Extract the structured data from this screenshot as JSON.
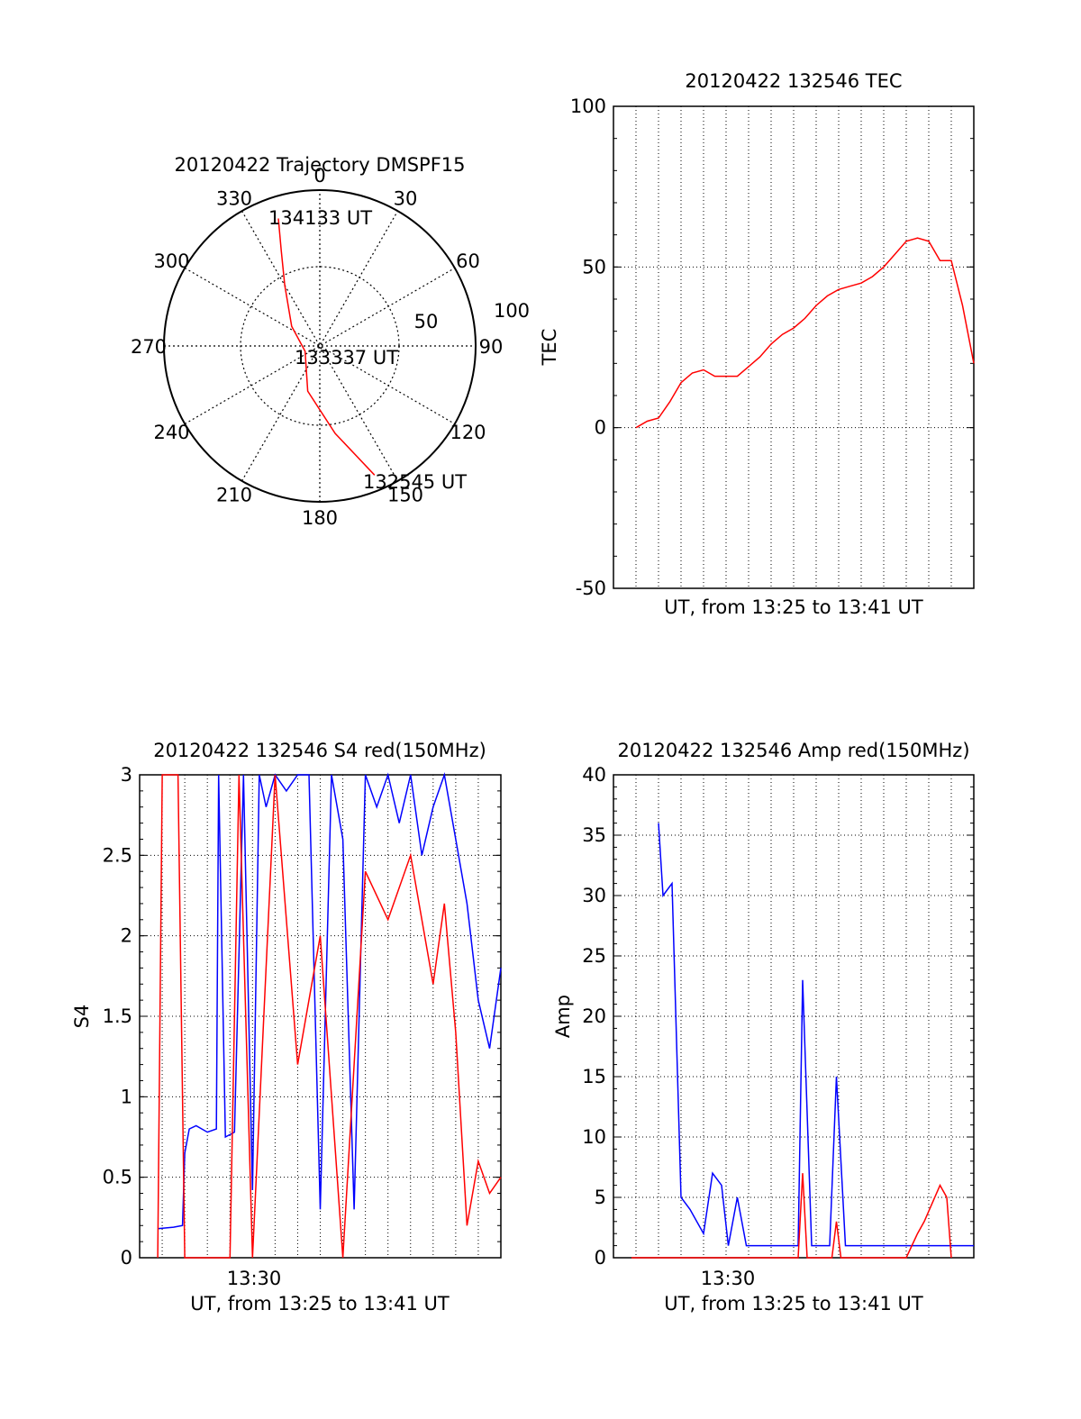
{
  "chart_data": [
    {
      "id": "trajectory",
      "type": "polar",
      "title": "20120422 Trajectory DMSPF15",
      "angle_labels": [
        "0",
        "30",
        "60",
        "90",
        "120",
        "150",
        "180",
        "210",
        "240",
        "270",
        "300",
        "330"
      ],
      "radius_labels": [
        "50",
        "100"
      ],
      "annotations": [
        "134133 UT",
        "133337 UT",
        "132545 UT"
      ],
      "series": [
        {
          "color": "#ff0000",
          "points": [
            {
              "az": 342,
              "r": 86
            },
            {
              "az": 338,
              "r": 66
            },
            {
              "az": 330,
              "r": 45
            },
            {
              "az": 305,
              "r": 22
            },
            {
              "az": 250,
              "r": 10
            },
            {
              "az": 195,
              "r": 30
            },
            {
              "az": 170,
              "r": 57
            },
            {
              "az": 157,
              "r": 90
            }
          ]
        }
      ]
    },
    {
      "id": "tec",
      "type": "line",
      "title": "20120422 132546 TEC",
      "xlabel": "UT, from 13:25 to 13:41 UT",
      "ylabel": "TEC",
      "xlim": [
        0,
        16
      ],
      "ylim": [
        -50,
        100
      ],
      "yticks": [
        "-50",
        "0",
        "50",
        "100"
      ],
      "grid": true,
      "series": [
        {
          "color": "#ff0000",
          "x": [
            1,
            1.5,
            2,
            2.5,
            3,
            3.5,
            4,
            4.5,
            5,
            5.5,
            6,
            6.5,
            7,
            7.5,
            8,
            8.5,
            9,
            9.5,
            10,
            10.5,
            11,
            11.5,
            12,
            12.5,
            13,
            13.5,
            14,
            14.5,
            15,
            15.5,
            16
          ],
          "y": [
            0,
            2,
            3,
            8,
            14,
            17,
            18,
            16,
            16,
            16,
            19,
            22,
            26,
            29,
            31,
            34,
            38,
            41,
            43,
            44,
            45,
            47,
            50,
            54,
            58,
            59,
            58,
            52,
            52,
            38,
            20
          ]
        }
      ]
    },
    {
      "id": "s4",
      "type": "line",
      "title": "20120422 132546 S4 red(150MHz)",
      "xlabel": "UT, from 13:25 to 13:41 UT",
      "ylabel": "S4",
      "xtick_labels": [
        "13:30"
      ],
      "xlim": [
        0,
        16
      ],
      "ylim": [
        0,
        3
      ],
      "yticks": [
        "0",
        "0.5",
        "1",
        "1.5",
        "2",
        "2.5",
        "3"
      ],
      "grid": true,
      "series": [
        {
          "color": "#0000ff",
          "x": [
            0.8,
            1.5,
            1.9,
            2.0,
            2.2,
            2.5,
            3.0,
            3.4,
            3.5,
            3.8,
            4.2,
            4.6,
            5.0,
            5.3,
            5.6,
            6.0,
            6.5,
            7.0,
            7.5,
            8.0,
            8.5,
            9.0,
            9.5,
            10.0,
            10.5,
            11.0,
            11.5,
            12.0,
            12.5,
            13.0,
            13.5,
            14.0,
            14.5,
            15.0,
            15.5,
            16.0
          ],
          "y": [
            0.18,
            0.19,
            0.2,
            0.65,
            0.8,
            0.82,
            0.78,
            0.8,
            3.0,
            0.75,
            0.78,
            3.0,
            0.42,
            3.0,
            2.8,
            3.0,
            2.9,
            3.0,
            3.0,
            0.3,
            3.0,
            2.6,
            0.3,
            3.0,
            2.8,
            3.0,
            2.7,
            3.0,
            2.5,
            2.8,
            3.0,
            2.6,
            2.2,
            1.6,
            1.3,
            1.8
          ]
        },
        {
          "color": "#ff0000",
          "x": [
            0.8,
            1.0,
            1.7,
            2.0,
            4.0,
            4.4,
            5.0,
            6.0,
            7.0,
            8.0,
            9.0,
            10.0,
            11.0,
            12.0,
            13.0,
            13.5,
            14.0,
            14.5,
            15.0,
            15.5,
            16.0
          ],
          "y": [
            0.0,
            3.0,
            3.0,
            0.0,
            0.0,
            3.0,
            0.0,
            3.0,
            1.2,
            2.0,
            0.0,
            2.4,
            2.1,
            2.5,
            1.7,
            2.2,
            1.4,
            0.2,
            0.6,
            0.4,
            0.5
          ]
        }
      ]
    },
    {
      "id": "amp",
      "type": "line",
      "title": "20120422 132546 Amp red(150MHz)",
      "xlabel": "UT, from 13:25 to 13:41 UT",
      "ylabel": "Amp",
      "xtick_labels": [
        "13:30"
      ],
      "xlim": [
        0,
        16
      ],
      "ylim": [
        0,
        40
      ],
      "yticks": [
        "0",
        "5",
        "10",
        "15",
        "20",
        "25",
        "30",
        "35",
        "40"
      ],
      "grid": true,
      "series": [
        {
          "color": "#0000ff",
          "x": [
            2.0,
            2.2,
            2.6,
            3.0,
            3.4,
            4.0,
            4.4,
            4.8,
            5.1,
            5.5,
            5.9,
            6.3,
            7.0,
            7.7,
            8.2,
            8.4,
            8.8,
            9.6,
            9.9,
            10.3,
            11.0,
            12.0,
            13.0,
            14.0,
            15.0,
            16.0
          ],
          "y": [
            36,
            30,
            31,
            5,
            4,
            2,
            7,
            6,
            1,
            5,
            1,
            1,
            1,
            1,
            1,
            23,
            1,
            1,
            15,
            1,
            1,
            1,
            1,
            1,
            1,
            1
          ]
        },
        {
          "color": "#ff0000",
          "x": [
            0.8,
            1.5,
            2.0,
            8.2,
            8.4,
            8.6,
            9.7,
            9.9,
            10.1,
            13.0,
            13.5,
            13.8,
            14.5,
            14.8,
            15.0
          ],
          "y": [
            0,
            0,
            0,
            0,
            7,
            0,
            0,
            3,
            0,
            0,
            2,
            3,
            6,
            5,
            0
          ]
        }
      ]
    }
  ]
}
